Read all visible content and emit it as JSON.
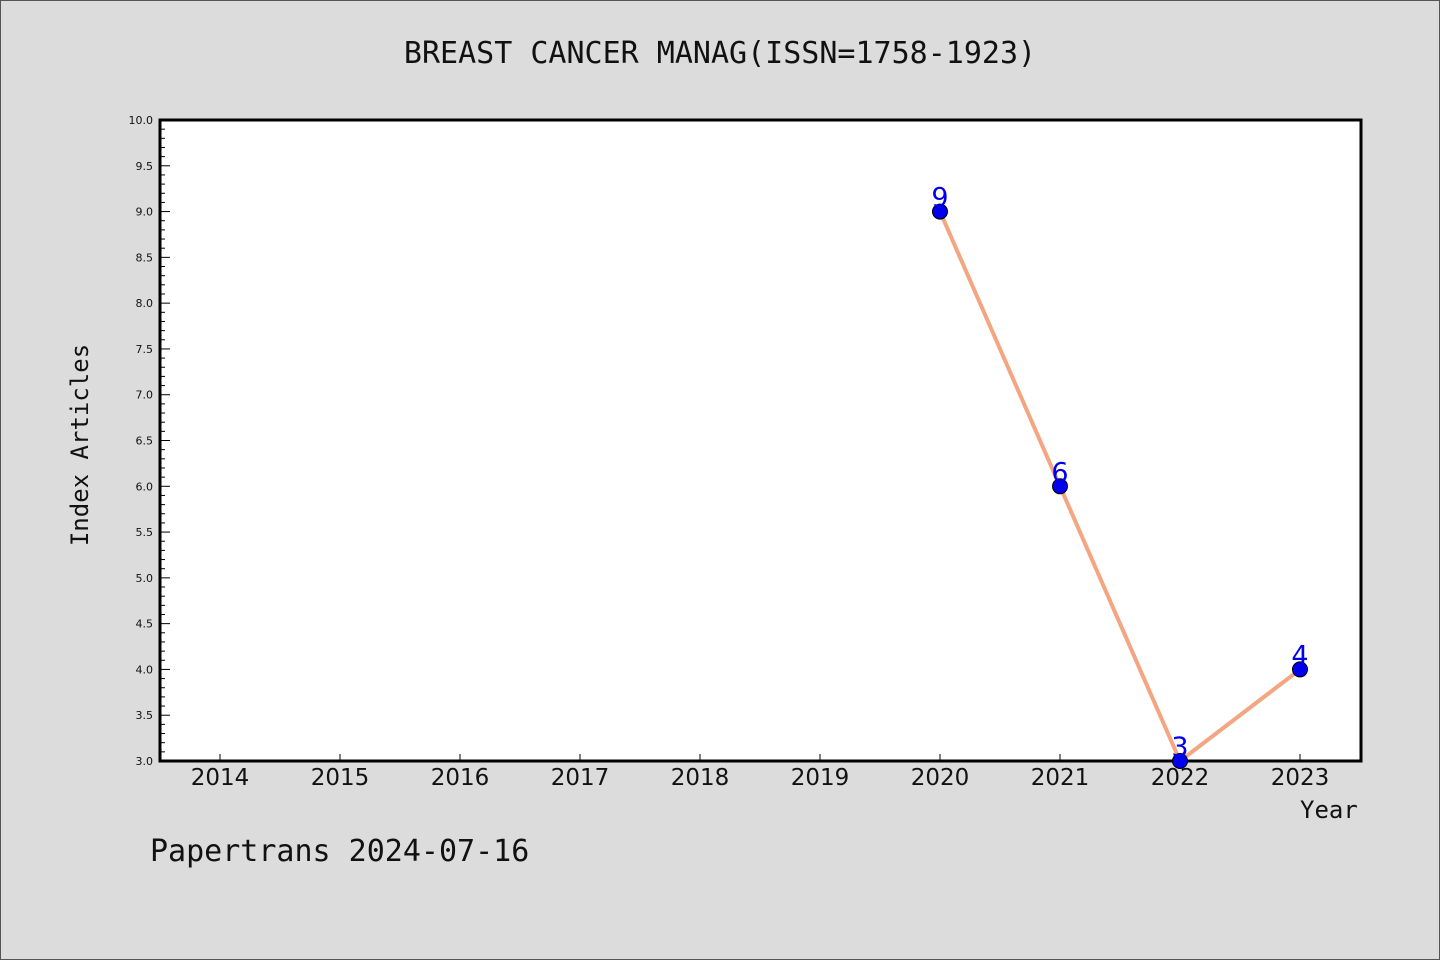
{
  "chart_data": {
    "type": "line",
    "title": "BREAST CANCER MANAG(ISSN=1758-1923)",
    "xlabel": "Year",
    "ylabel": "Index Articles",
    "categories": [
      "2014",
      "2015",
      "2016",
      "2017",
      "2018",
      "2019",
      "2020",
      "2021",
      "2022",
      "2023"
    ],
    "points": [
      {
        "x": "2020",
        "y": 9
      },
      {
        "x": "2021",
        "y": 6
      },
      {
        "x": "2022",
        "y": 3
      },
      {
        "x": "2023",
        "y": 4
      }
    ],
    "ylim": [
      3.0,
      10.0
    ],
    "yticks": [
      "3.0",
      "3.5",
      "4.0",
      "4.5",
      "5.0",
      "5.5",
      "6.0",
      "6.5",
      "7.0",
      "7.5",
      "8.0",
      "8.5",
      "9.0",
      "9.5",
      "10.0"
    ],
    "grid": false,
    "line_color": "#f4a582",
    "marker_color": "#0000ee",
    "label_color": "#0000ee"
  },
  "footer": {
    "note": "Papertrans 2024-07-16"
  }
}
